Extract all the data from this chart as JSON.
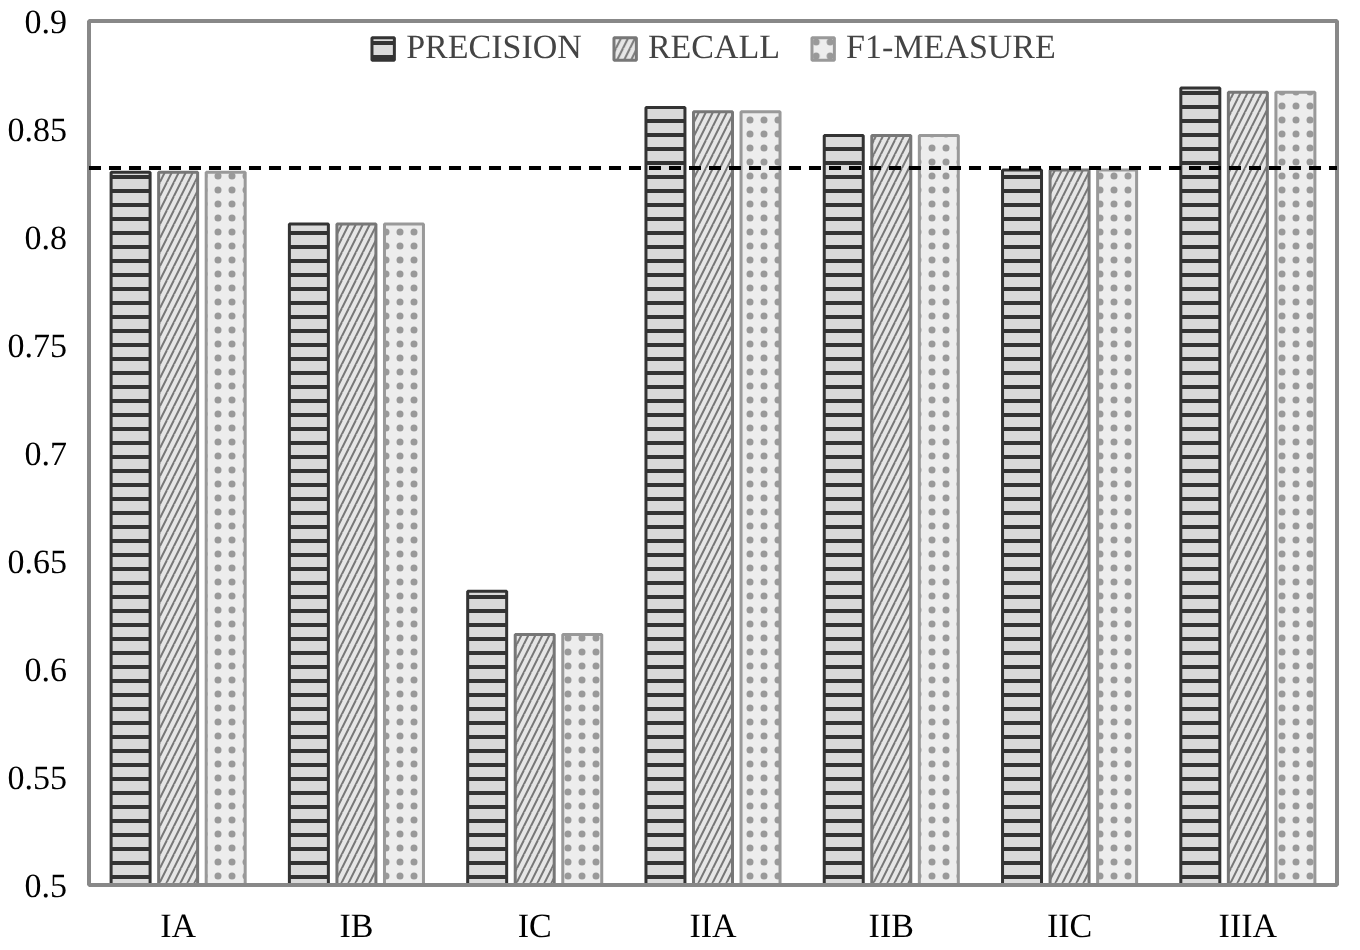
{
  "chart_data": {
    "type": "bar",
    "categories": [
      "IA",
      "IB",
      "IC",
      "IIA",
      "IIB",
      "IIC",
      "IIIA"
    ],
    "series": [
      {
        "name": "PRECISION",
        "color": "#333333",
        "values": [
          0.83,
          0.806,
          0.636,
          0.86,
          0.847,
          0.831,
          0.869
        ]
      },
      {
        "name": "RECALL",
        "color": "#777777",
        "values": [
          0.83,
          0.806,
          0.616,
          0.858,
          0.847,
          0.831,
          0.867
        ]
      },
      {
        "name": "F1-MEASURE",
        "color": "#999999",
        "values": [
          0.83,
          0.806,
          0.616,
          0.858,
          0.847,
          0.831,
          0.867
        ]
      }
    ],
    "ylim": [
      0.5,
      0.9
    ],
    "yticks": [
      0.5,
      0.55,
      0.6,
      0.65,
      0.7,
      0.75,
      0.8,
      0.85,
      0.9
    ],
    "ref_lines": [
      {
        "axis": "y",
        "value": 0.832,
        "color": "#000000",
        "line_style": "dashed"
      }
    ],
    "grid": false,
    "legend": "top"
  }
}
